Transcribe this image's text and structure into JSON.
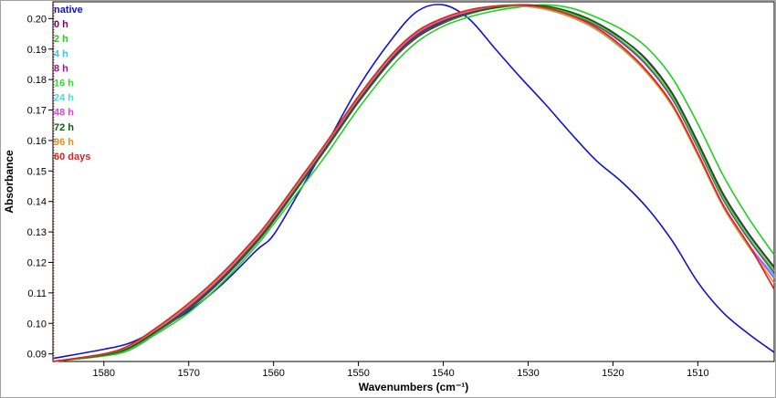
{
  "chart_data": {
    "type": "line",
    "title": "",
    "xlabel": "Wavenumbers (cm⁻¹)",
    "ylabel": "Absorbance",
    "x_reversed": true,
    "xlim": [
      1586,
      1501
    ],
    "ylim": [
      0.0875,
      0.2055
    ],
    "x_ticks": [
      1580,
      1570,
      1560,
      1550,
      1540,
      1530,
      1520,
      1510
    ],
    "x_tick_labels": [
      "1580",
      "1570",
      "1560",
      "1550",
      "1540",
      "1530",
      "1520",
      "1510"
    ],
    "y_ticks": [
      0.09,
      0.1,
      0.11,
      0.12,
      0.13,
      0.14,
      0.15,
      0.16,
      0.17,
      0.18,
      0.19,
      0.2
    ],
    "y_tick_labels": [
      "0.09",
      "0.10",
      "0.11",
      "0.12",
      "0.13",
      "0.14",
      "0.15",
      "0.16",
      "0.17",
      "0.18",
      "0.19",
      "0.20"
    ],
    "grid": false,
    "legend_position": "top-left",
    "x": [
      1586,
      1580,
      1577,
      1574,
      1570,
      1566,
      1562,
      1560,
      1557,
      1554,
      1550,
      1546,
      1543,
      1540,
      1537,
      1534,
      1531,
      1528,
      1525,
      1522,
      1519,
      1516,
      1513,
      1510,
      1507,
      1504,
      1501
    ],
    "series": [
      {
        "name": "native",
        "color": "#1010d0",
        "values": [
          0.0885,
          0.0915,
          0.0935,
          0.0975,
          0.104,
          0.113,
          0.124,
          0.129,
          0.143,
          0.1575,
          0.1775,
          0.1935,
          0.2025,
          0.2045,
          0.2,
          0.1905,
          0.181,
          0.172,
          0.1625,
          0.1535,
          0.1465,
          0.138,
          0.127,
          0.1135,
          0.1035,
          0.0965,
          0.0905
        ]
      },
      {
        "name": "0 h",
        "color": "#7a007a",
        "values": [
          0.0875,
          0.0895,
          0.0918,
          0.0968,
          0.1045,
          0.1145,
          0.1265,
          0.1335,
          0.145,
          0.1565,
          0.1725,
          0.1865,
          0.194,
          0.1985,
          0.2015,
          0.2035,
          0.2045,
          0.204,
          0.202,
          0.1985,
          0.1935,
          0.1865,
          0.1755,
          0.1595,
          0.1425,
          0.1295,
          0.1185
        ]
      },
      {
        "name": "2 h",
        "color": "#20d020",
        "values": [
          0.0875,
          0.0893,
          0.0912,
          0.0962,
          0.1035,
          0.1135,
          0.1255,
          0.1325,
          0.1435,
          0.1545,
          0.1705,
          0.1845,
          0.1925,
          0.1975,
          0.2005,
          0.2025,
          0.2038,
          0.2045,
          0.2035,
          0.2005,
          0.1965,
          0.1905,
          0.1805,
          0.1655,
          0.1485,
          0.1345,
          0.1225
        ]
      },
      {
        "name": "4 h",
        "color": "#30c8f0",
        "values": [
          0.0875,
          0.0896,
          0.0921,
          0.0972,
          0.1055,
          0.1155,
          0.1275,
          0.1345,
          0.146,
          0.1575,
          0.1735,
          0.1875,
          0.1952,
          0.1995,
          0.2022,
          0.2038,
          0.2042,
          0.2032,
          0.2008,
          0.1968,
          0.1908,
          0.1828,
          0.1718,
          0.1558,
          0.1388,
          0.1258,
          0.1158
        ]
      },
      {
        "name": "8 h",
        "color": "#a010a0",
        "values": [
          0.0875,
          0.0897,
          0.0922,
          0.0974,
          0.1052,
          0.1152,
          0.1272,
          0.1342,
          0.1456,
          0.1572,
          0.1732,
          0.1872,
          0.1948,
          0.1992,
          0.202,
          0.2036,
          0.2042,
          0.2036,
          0.2014,
          0.1978,
          0.1922,
          0.1846,
          0.1736,
          0.1576,
          0.1406,
          0.1276,
          0.1166
        ]
      },
      {
        "name": "16 h",
        "color": "#30e030",
        "values": [
          0.0875,
          0.0895,
          0.0919,
          0.097,
          0.1048,
          0.1148,
          0.1268,
          0.1338,
          0.1452,
          0.1568,
          0.1728,
          0.1868,
          0.1945,
          0.1988,
          0.2016,
          0.2034,
          0.2042,
          0.2038,
          0.2016,
          0.1982,
          0.1928,
          0.1852,
          0.1742,
          0.1582,
          0.1412,
          0.1282,
          0.1172
        ]
      },
      {
        "name": "24 h",
        "color": "#40e0e8",
        "values": [
          0.0875,
          0.0897,
          0.0923,
          0.0975,
          0.1058,
          0.1158,
          0.1278,
          0.1348,
          0.1462,
          0.1578,
          0.1738,
          0.1878,
          0.1955,
          0.1998,
          0.2024,
          0.2038,
          0.2041,
          0.203,
          0.2005,
          0.1964,
          0.1902,
          0.1822,
          0.1712,
          0.1552,
          0.1382,
          0.1252,
          0.1152
        ]
      },
      {
        "name": "48 h",
        "color": "#e040e0",
        "values": [
          0.0875,
          0.0898,
          0.0924,
          0.0976,
          0.1058,
          0.1158,
          0.1278,
          0.1348,
          0.1463,
          0.1578,
          0.1738,
          0.1878,
          0.1954,
          0.1997,
          0.2023,
          0.2038,
          0.2042,
          0.2033,
          0.2008,
          0.1968,
          0.1908,
          0.1828,
          0.1718,
          0.1558,
          0.1388,
          0.1258,
          0.1148
        ]
      },
      {
        "name": "72 h",
        "color": "#106010",
        "values": [
          0.0875,
          0.0896,
          0.092,
          0.0971,
          0.1049,
          0.1149,
          0.1269,
          0.1339,
          0.1453,
          0.1569,
          0.1729,
          0.1869,
          0.1946,
          0.1989,
          0.2017,
          0.2035,
          0.2044,
          0.2041,
          0.2022,
          0.1988,
          0.1936,
          0.1862,
          0.1752,
          0.1592,
          0.1422,
          0.1292,
          0.1182
        ]
      },
      {
        "name": "96 h",
        "color": "#e09020",
        "values": [
          0.0875,
          0.0899,
          0.0926,
          0.0979,
          0.1062,
          0.1162,
          0.1282,
          0.1352,
          0.1466,
          0.1582,
          0.1742,
          0.1882,
          0.1958,
          0.2,
          0.2026,
          0.204,
          0.2042,
          0.2032,
          0.2006,
          0.1966,
          0.1904,
          0.1822,
          0.1712,
          0.1552,
          0.1382,
          0.1252,
          0.1132
        ]
      },
      {
        "name": "60 days",
        "color": "#e02020",
        "values": [
          0.0875,
          0.09,
          0.0928,
          0.0982,
          0.1066,
          0.1166,
          0.1286,
          0.1356,
          0.147,
          0.1585,
          0.1745,
          0.1885,
          0.196,
          0.2002,
          0.2028,
          0.2041,
          0.2044,
          0.2036,
          0.2012,
          0.1972,
          0.191,
          0.1828,
          0.1718,
          0.1558,
          0.1388,
          0.1258,
          0.1112
        ]
      }
    ]
  }
}
